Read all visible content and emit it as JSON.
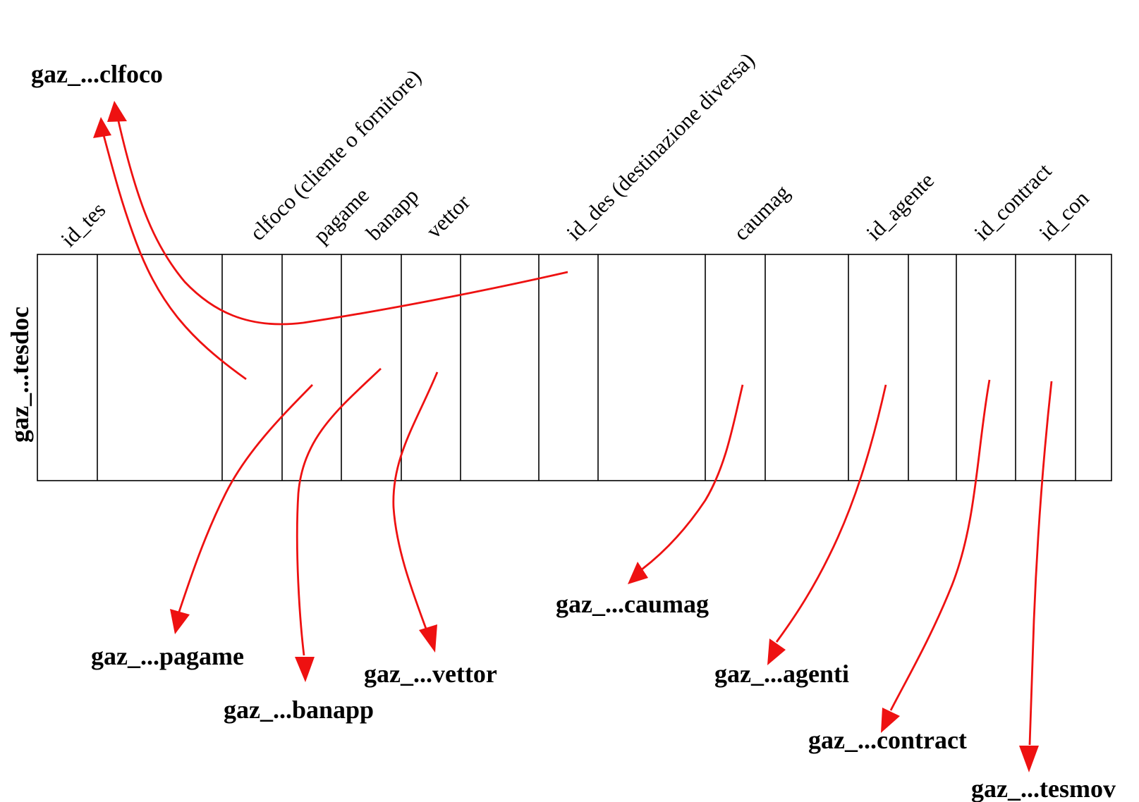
{
  "table_name": "gaz_...tesdoc",
  "fields": {
    "id_tes": "id_tes",
    "clfoco": "clfoco (cliente o fornitore)",
    "pagame": "pagame",
    "banapp": "banapp",
    "vettor": "vettor",
    "id_des": "id_des (destinazione diversa)",
    "caumag": "caumag",
    "id_agente": "id_agente",
    "id_contract": "id_contract",
    "id_con": "id_con"
  },
  "targets": {
    "clfoco": "gaz_...clfoco",
    "pagame": "gaz_...pagame",
    "banapp": "gaz_...banapp",
    "vettor": "gaz_...vettor",
    "caumag": "gaz_...caumag",
    "agenti": "gaz_...agenti",
    "contract": "gaz_...contract",
    "tesmov": "gaz_...tesmov"
  },
  "colors": {
    "link": "#ee1111",
    "outline": "#000000"
  }
}
